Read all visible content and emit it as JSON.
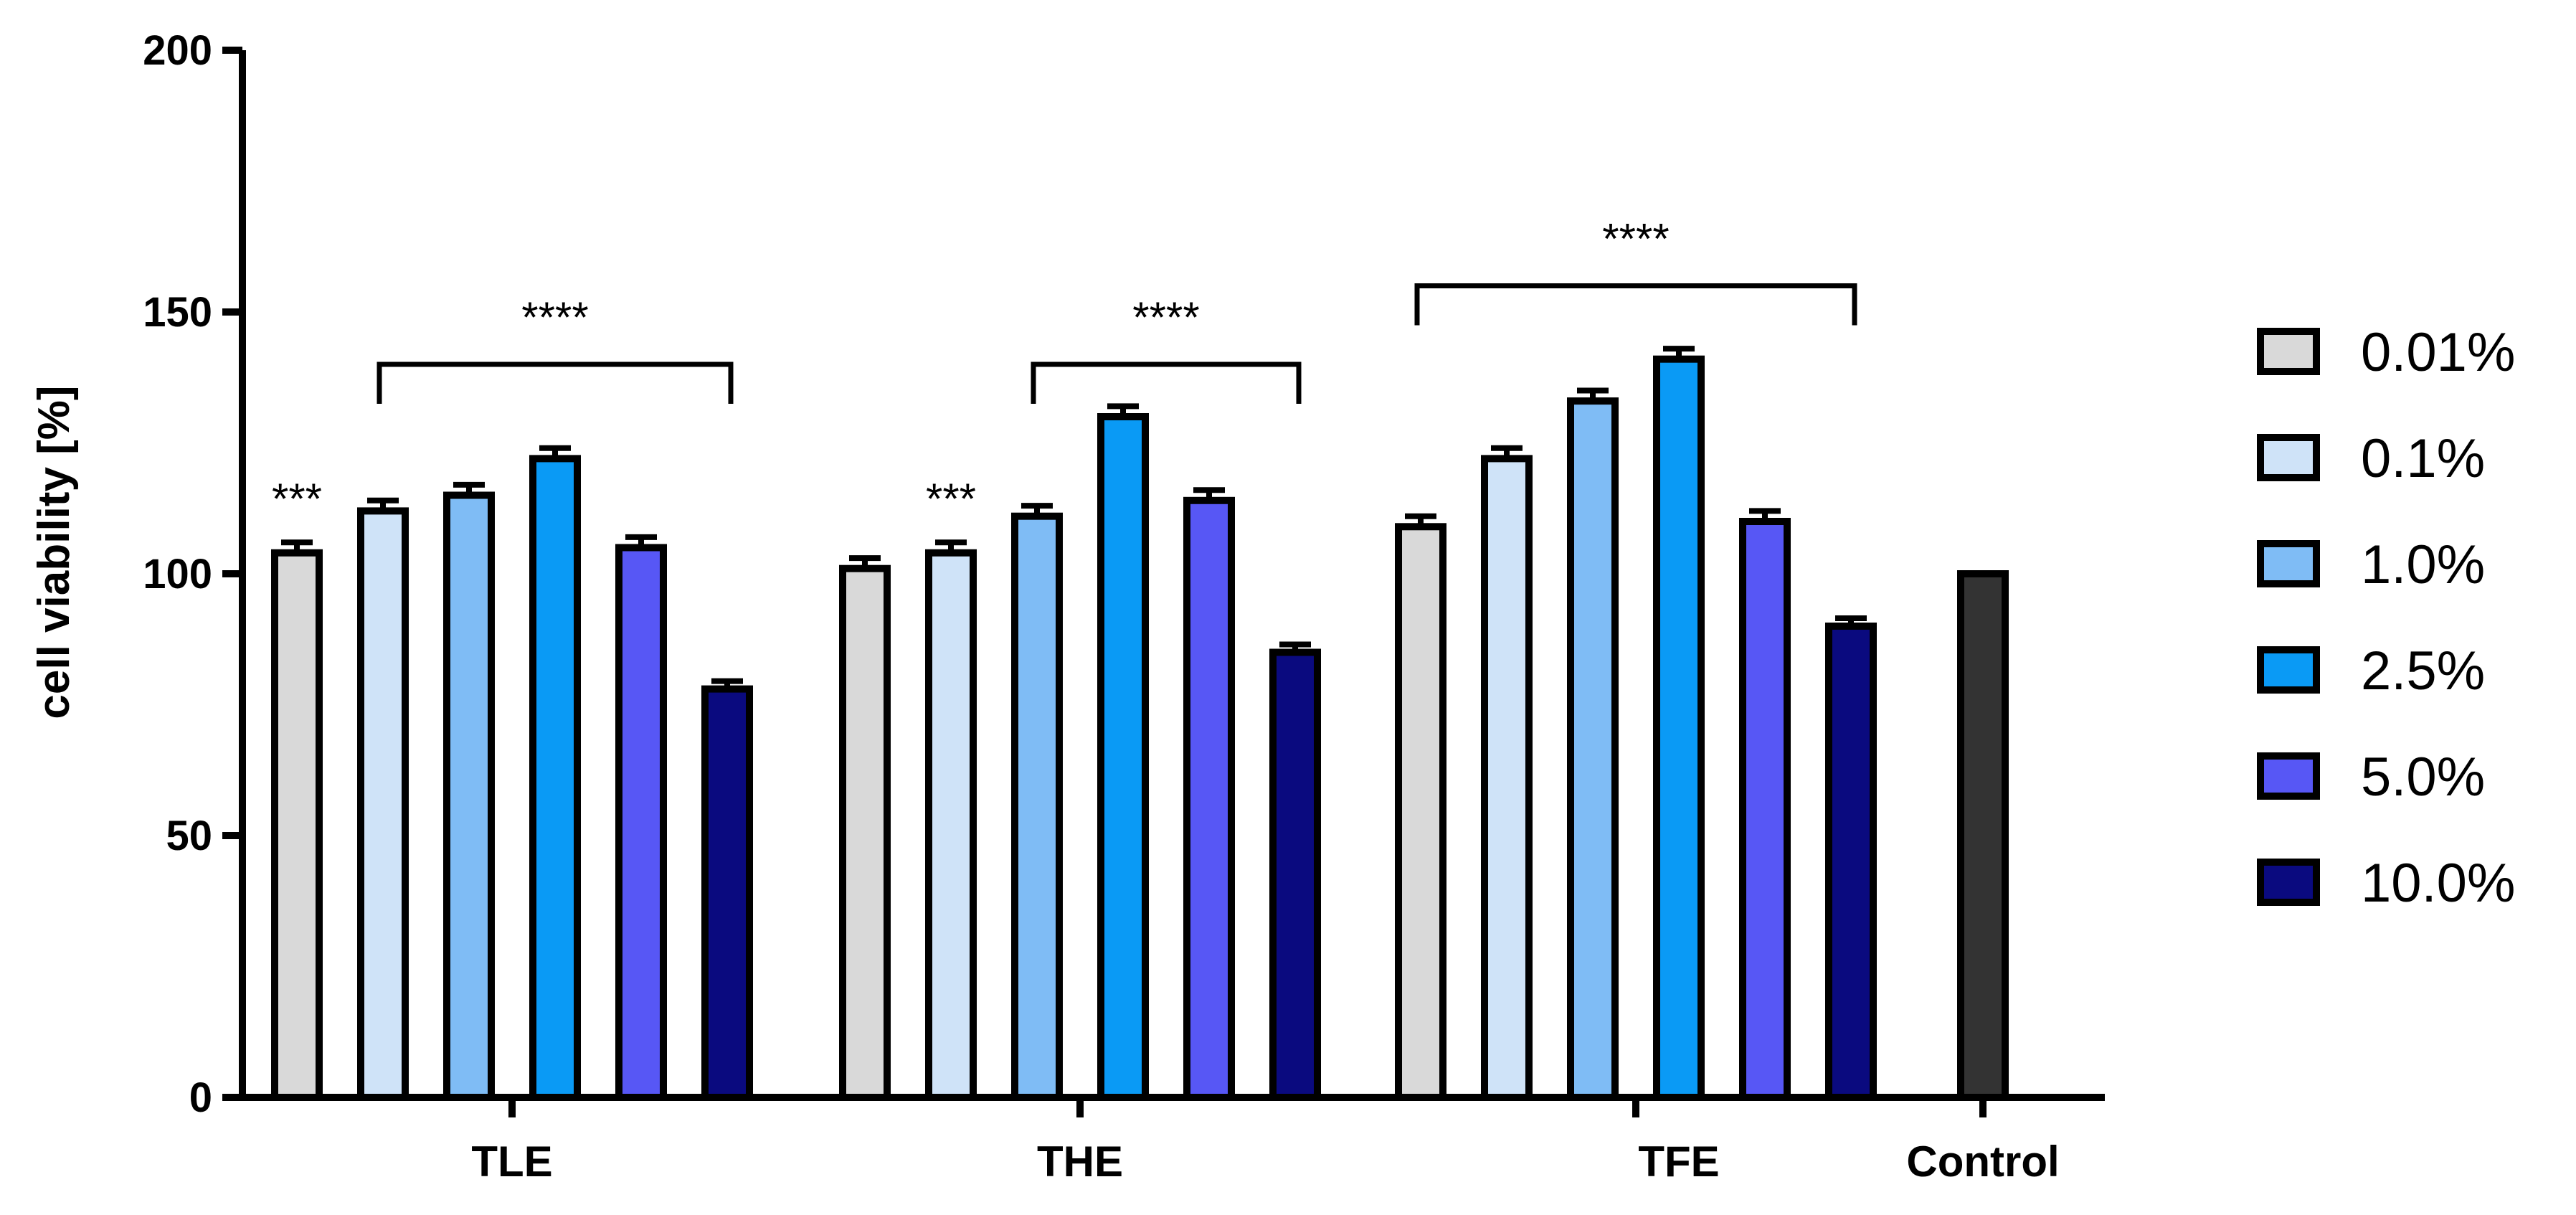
{
  "chart_data": {
    "type": "bar",
    "title": "",
    "xlabel": "",
    "ylabel": "cell viability [%]",
    "ylim": [
      0,
      200
    ],
    "yticks": [
      0,
      50,
      100,
      150,
      200
    ],
    "grid": false,
    "legend_position": "right",
    "categories": [
      "TLE",
      "THE",
      "TFE",
      "Control"
    ],
    "series": [
      {
        "name": "0.01%",
        "color": "#d9d9d9",
        "values": [
          104,
          101,
          109,
          null
        ],
        "errors": [
          2,
          2,
          2,
          null
        ]
      },
      {
        "name": "0.1%",
        "color": "#cfe3f8",
        "values": [
          112,
          104,
          122,
          null
        ],
        "errors": [
          2,
          2,
          2,
          null
        ]
      },
      {
        "name": "1.0%",
        "color": "#7fbcf5",
        "values": [
          115,
          111,
          133,
          null
        ],
        "errors": [
          2,
          2,
          2,
          null
        ]
      },
      {
        "name": "2.5%",
        "color": "#0a9af5",
        "values": [
          122,
          130,
          141,
          null
        ],
        "errors": [
          2,
          2,
          2,
          null
        ]
      },
      {
        "name": "5.0%",
        "color": "#5757f5",
        "values": [
          105,
          114,
          110,
          null
        ],
        "errors": [
          2,
          2,
          2,
          null
        ]
      },
      {
        "name": "10.0%",
        "color": "#0a0a7f",
        "values": [
          78,
          85,
          90,
          null
        ],
        "errors": [
          1.5,
          1.5,
          1.5,
          null
        ]
      }
    ],
    "control": {
      "label": "Control",
      "value": 100,
      "color": "#333333"
    },
    "annotations": [
      {
        "text": "***",
        "category": "TLE",
        "series": "0.01%"
      },
      {
        "text": "***",
        "category": "THE",
        "series": "0.1%"
      },
      {
        "text": "****",
        "category": "TLE",
        "from_series": "0.1%",
        "to_series": "10.0%",
        "bracket_value": 140
      },
      {
        "text": "****",
        "category": "THE",
        "from_series": "1.0%",
        "to_series": "10.0%",
        "bracket_value": 140
      },
      {
        "text": "****",
        "category": "TFE",
        "from_series": "0.01%",
        "to_series": "10.0%",
        "bracket_value": 155
      }
    ]
  }
}
